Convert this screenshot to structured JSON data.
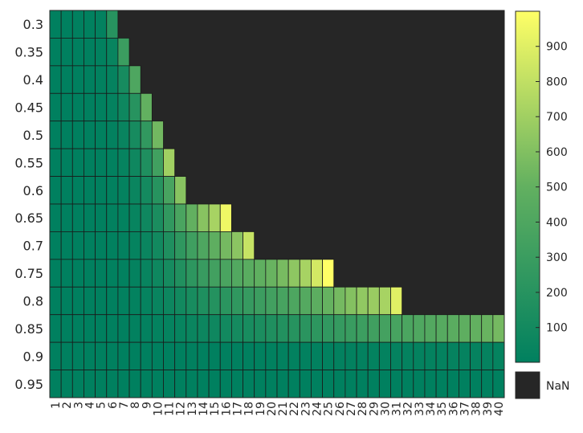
{
  "chart_data": {
    "type": "heatmap",
    "title": "",
    "xlabel": "",
    "ylabel": "",
    "x_labels": [
      "1",
      "2",
      "3",
      "4",
      "5",
      "6",
      "7",
      "8",
      "9",
      "10",
      "11",
      "12",
      "13",
      "14",
      "15",
      "16",
      "17",
      "18",
      "19",
      "20",
      "21",
      "22",
      "23",
      "24",
      "25",
      "26",
      "27",
      "28",
      "29",
      "30",
      "31",
      "32",
      "33",
      "34",
      "35",
      "36",
      "37",
      "38",
      "39",
      "40"
    ],
    "y_labels": [
      "0.3",
      "0.35",
      "0.4",
      "0.45",
      "0.5",
      "0.55",
      "0.6",
      "0.65",
      "0.7",
      "0.75",
      "0.8",
      "0.85",
      "0.9",
      "0.95"
    ],
    "colorbar": {
      "min": 1,
      "max": 1000,
      "ticks": [
        100,
        200,
        300,
        400,
        500,
        600,
        700,
        800,
        900
      ],
      "missing_label": "NaN"
    },
    "colors": {
      "low": "#00805f",
      "mid": "#62b060",
      "high": "#ffff66",
      "nan": "#262626"
    },
    "values": [
      [
        1,
        2,
        4,
        8,
        15,
        200
      ],
      [
        1,
        2,
        3,
        6,
        11,
        40,
        300
      ],
      [
        1,
        2,
        3,
        5,
        9,
        25,
        120,
        400
      ],
      [
        1,
        2,
        3,
        5,
        8,
        20,
        70,
        200,
        500
      ],
      [
        1,
        2,
        3,
        4,
        7,
        15,
        45,
        120,
        250,
        550
      ],
      [
        1,
        2,
        3,
        4,
        6,
        12,
        30,
        75,
        160,
        330,
        700
      ],
      [
        1,
        2,
        3,
        4,
        6,
        10,
        22,
        50,
        105,
        200,
        370,
        620
      ],
      [
        1,
        2,
        3,
        4,
        5,
        9,
        18,
        38,
        75,
        140,
        250,
        380,
        500,
        620,
        720,
        950
      ],
      [
        1,
        2,
        3,
        4,
        5,
        8,
        14,
        28,
        52,
        95,
        160,
        240,
        320,
        400,
        480,
        560,
        630,
        820
      ],
      [
        1,
        2,
        3,
        4,
        5,
        7,
        12,
        22,
        40,
        70,
        115,
        170,
        230,
        285,
        335,
        380,
        420,
        455,
        485,
        520,
        570,
        640,
        720,
        860,
        1000
      ],
      [
        1,
        2,
        3,
        4,
        5,
        6,
        10,
        17,
        28,
        45,
        68,
        95,
        125,
        155,
        185,
        215,
        245,
        275,
        305,
        335,
        365,
        395,
        430,
        470,
        510,
        560,
        610,
        650,
        680,
        720,
        900
      ],
      [
        1,
        1,
        2,
        2,
        3,
        4,
        6,
        9,
        14,
        20,
        28,
        38,
        50,
        63,
        77,
        92,
        108,
        124,
        141,
        158,
        176,
        194,
        213,
        232,
        251,
        270,
        289,
        308,
        327,
        346,
        365,
        384,
        403,
        422,
        441,
        460,
        480,
        500,
        520,
        560
      ],
      [
        1,
        1,
        1,
        1,
        1,
        1,
        1,
        2,
        2,
        2,
        3,
        3,
        4,
        4,
        5,
        5,
        6,
        6,
        7,
        8,
        9,
        10,
        11,
        12,
        13,
        14,
        15,
        16,
        17,
        18,
        19,
        20,
        21,
        22,
        23,
        24,
        25,
        26,
        27,
        28
      ],
      [
        1,
        1,
        1,
        1,
        1,
        1,
        1,
        1,
        1,
        1,
        1,
        1,
        1,
        1,
        1,
        1,
        1,
        1,
        1,
        1,
        1,
        1,
        1,
        1,
        1,
        1,
        1,
        1,
        1,
        1,
        1,
        1,
        1,
        1,
        1,
        1,
        1,
        1,
        1,
        1
      ]
    ]
  }
}
